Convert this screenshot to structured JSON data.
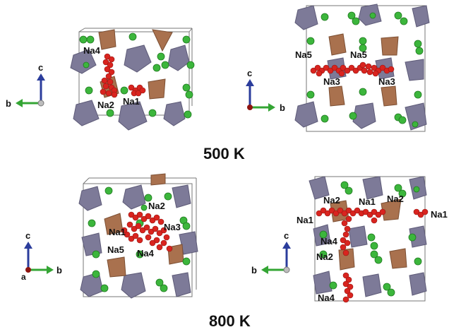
{
  "figure": {
    "temperature_top": "500 K",
    "temperature_bottom": "800 K"
  },
  "panels": {
    "top_left": {
      "axes": {
        "vertical": "c",
        "horizontal": "b"
      },
      "sites": [
        "Na4",
        "Na2",
        "Na1"
      ]
    },
    "top_right": {
      "axes": {
        "vertical": "c",
        "horizontal": "b"
      },
      "sites": [
        "Na5",
        "Na5",
        "Na3",
        "Na3"
      ]
    },
    "bottom_left": {
      "axes": {
        "vertical": "c",
        "horizontal": "b",
        "origin": "a"
      },
      "sites": [
        "Na2",
        "Na1",
        "Na3",
        "Na5",
        "Na4"
      ]
    },
    "bottom_right": {
      "axes": {
        "vertical": "c",
        "horizontal": "b"
      },
      "sites": [
        "Na2",
        "Na1",
        "Na2",
        "Na1",
        "Na1",
        "Na4",
        "Na2",
        "Na4"
      ]
    }
  },
  "colors": {
    "octahedron": "#7d7a98",
    "tetrahedron": "#a9714e",
    "green_atom": "#3cb63c",
    "red_atom": "#d9241f",
    "axis_c": "#2b3d9c",
    "axis_b": "#34a534"
  }
}
